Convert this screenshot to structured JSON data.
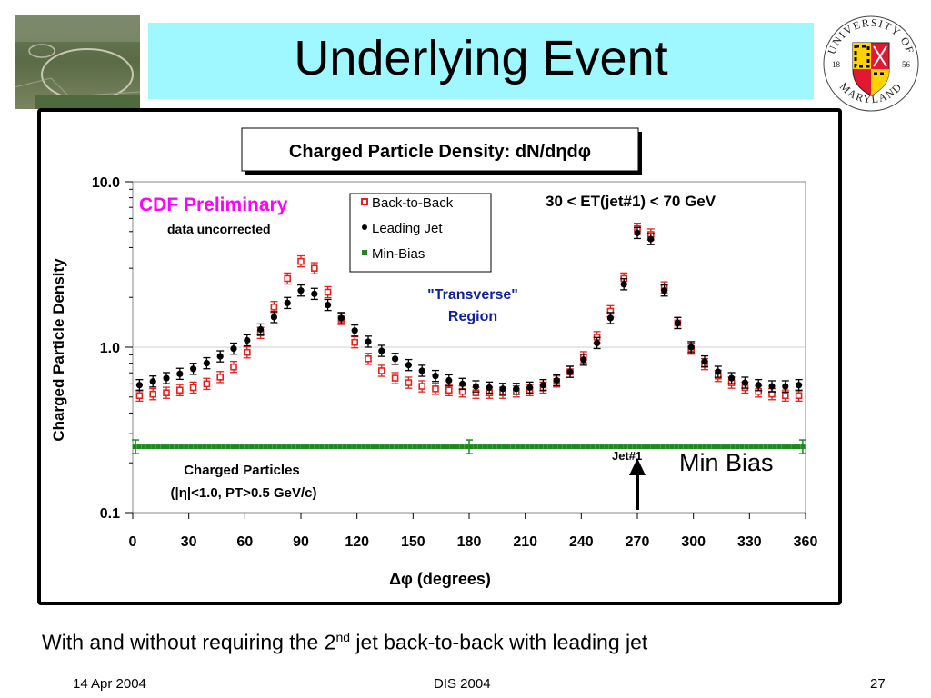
{
  "slide": {
    "title": "Underlying Event",
    "caption_pre": "With and without requiring the 2",
    "caption_sup": "nd",
    "caption_post": " jet back-to-back with leading jet",
    "footer_date": "14 Apr 2004",
    "footer_conf": "DIS 2004",
    "footer_page": "27",
    "logo_text_top": "UNIVERSITY OF",
    "logo_text_bottom": "MARYLAND",
    "logo_year_left": "18",
    "logo_year_right": "56"
  },
  "chart_data": {
    "type": "scatter",
    "title": "Charged Particle Density: dN/dηdφ",
    "xlabel": "Δφ  (degrees)",
    "ylabel": "Charged Particle Density",
    "xlim": [
      0,
      360
    ],
    "ylim": [
      0.1,
      10.0
    ],
    "yscale": "log",
    "xticks": [
      "0",
      "30",
      "60",
      "90",
      "120",
      "150",
      "180",
      "210",
      "240",
      "270",
      "300",
      "330",
      "360"
    ],
    "yticks": [
      "0.1",
      "1.0",
      "10.0"
    ],
    "legend_position": "top-center",
    "annotations": {
      "preliminary": "CDF Preliminary",
      "uncorrected": "data uncorrected",
      "et_range": "30 < ET(jet#1) < 70 GeV",
      "transverse_line1": "\"Transverse\"",
      "transverse_line2": "Region",
      "jet_label": "Jet#1",
      "min_bias": "Min Bias",
      "charged_line1": "Charged Particles",
      "charged_line2": "(|η|<1.0, PT>0.5 GeV/c)"
    },
    "colors": {
      "back_to_back": "#e8211b",
      "leading_jet": "#000000",
      "min_bias": "#1c8a1c",
      "title_pink": "#ff00ff",
      "annotation_blue": "#0d1fa0"
    },
    "x": [
      3.6,
      10.8,
      18,
      25.2,
      32.4,
      39.6,
      46.8,
      54,
      61.2,
      68.4,
      75.6,
      82.8,
      90,
      97.2,
      104.4,
      111.6,
      118.8,
      126,
      133.2,
      140.4,
      147.6,
      154.8,
      162,
      169.2,
      176.4,
      183.6,
      190.8,
      198,
      205.2,
      212.4,
      219.6,
      226.8,
      234,
      241.2,
      248.4,
      255.6,
      262.8,
      270,
      277.2,
      284.4,
      291.6,
      298.8,
      306,
      313.2,
      320.4,
      327.6,
      334.8,
      342,
      349.2,
      356.4
    ],
    "series": [
      {
        "name": "Back-to-Back",
        "marker": "open-square",
        "values": [
          0.51,
          0.52,
          0.53,
          0.55,
          0.57,
          0.6,
          0.66,
          0.76,
          0.93,
          1.22,
          1.75,
          2.6,
          3.3,
          3.0,
          2.15,
          1.48,
          1.07,
          0.85,
          0.72,
          0.65,
          0.61,
          0.58,
          0.56,
          0.55,
          0.54,
          0.53,
          0.53,
          0.53,
          0.54,
          0.55,
          0.57,
          0.62,
          0.71,
          0.87,
          1.15,
          1.65,
          2.6,
          5.2,
          4.8,
          2.3,
          1.4,
          0.98,
          0.79,
          0.67,
          0.61,
          0.57,
          0.54,
          0.52,
          0.51,
          0.51
        ]
      },
      {
        "name": "Leading Jet",
        "marker": "filled-circle",
        "values": [
          0.59,
          0.62,
          0.65,
          0.69,
          0.74,
          0.8,
          0.88,
          0.98,
          1.1,
          1.28,
          1.52,
          1.85,
          2.2,
          2.1,
          1.8,
          1.5,
          1.26,
          1.08,
          0.95,
          0.85,
          0.78,
          0.72,
          0.67,
          0.63,
          0.6,
          0.58,
          0.57,
          0.56,
          0.56,
          0.57,
          0.59,
          0.63,
          0.71,
          0.84,
          1.06,
          1.5,
          2.4,
          4.9,
          4.5,
          2.2,
          1.4,
          1.0,
          0.82,
          0.71,
          0.65,
          0.61,
          0.59,
          0.58,
          0.58,
          0.59
        ]
      },
      {
        "name": "Min-Bias",
        "marker": "filled-square",
        "value": 0.25
      }
    ]
  }
}
